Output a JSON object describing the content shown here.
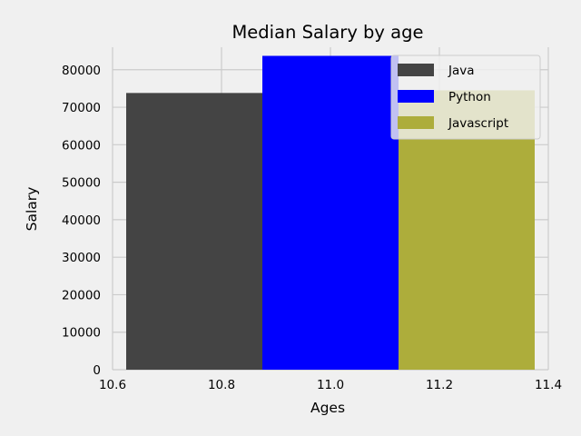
{
  "chart_data": {
    "type": "bar",
    "title": "Median Salary by age",
    "xlabel": "Ages",
    "ylabel": "Salary",
    "xlim": [
      10.6,
      11.4
    ],
    "ylim": [
      0,
      86000
    ],
    "xticks": [
      "10.6",
      "10.8",
      "11.0",
      "11.2",
      "11.4"
    ],
    "yticks": [
      "0",
      "10000",
      "20000",
      "30000",
      "40000",
      "50000",
      "60000",
      "70000",
      "80000"
    ],
    "grid": true,
    "legend_position": "top-right",
    "bar_width": 0.25,
    "series": [
      {
        "name": "Java",
        "x": 10.75,
        "value": 73800,
        "color": "#444444"
      },
      {
        "name": "Python",
        "x": 11.0,
        "value": 83700,
        "color": "#0000ff"
      },
      {
        "name": "Javascript",
        "x": 11.25,
        "value": 74500,
        "color": "#adad3b"
      }
    ]
  }
}
